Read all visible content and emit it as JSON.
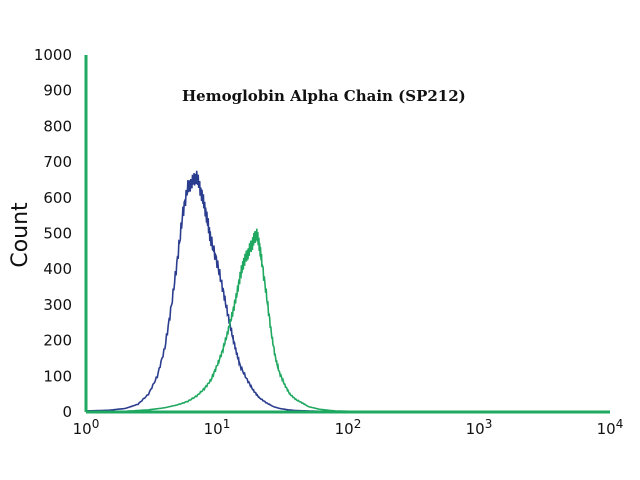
{
  "chart_data": {
    "type": "line",
    "title": "Hemoglobin Alpha Chain (SP212)",
    "xlabel": "",
    "ylabel": "Count",
    "xscale": "log",
    "xlim": [
      1,
      10000
    ],
    "ylim": [
      0,
      1000
    ],
    "grid": false,
    "legend": "none",
    "yticks": [
      "0",
      "100",
      "200",
      "300",
      "400",
      "500",
      "600",
      "700",
      "800",
      "900",
      "1000"
    ],
    "xticks": [
      {
        "base": "10",
        "exp": "0"
      },
      {
        "base": "10",
        "exp": "1"
      },
      {
        "base": "10",
        "exp": "2"
      },
      {
        "base": "10",
        "exp": "3"
      },
      {
        "base": "10",
        "exp": "4"
      }
    ],
    "colors": {
      "series_blue": "#2b3d8f",
      "series_green": "#1fa860",
      "axis": "#1fa860"
    },
    "series": [
      {
        "color": "#2b3d8f",
        "x": [
          1,
          1.5,
          2,
          2.5,
          3,
          3.5,
          4,
          4.5,
          5,
          5.5,
          6,
          6.5,
          7,
          7.5,
          8,
          8.5,
          9,
          10,
          11,
          12,
          13,
          14,
          15,
          17,
          19,
          21,
          24,
          27,
          30,
          35,
          40,
          50,
          60,
          80,
          100,
          200,
          500,
          1000,
          10000
        ],
        "y": [
          3,
          5,
          10,
          22,
          50,
          100,
          180,
          300,
          430,
          560,
          630,
          645,
          660,
          620,
          580,
          530,
          480,
          420,
          350,
          280,
          220,
          170,
          130,
          90,
          60,
          40,
          25,
          15,
          10,
          6,
          4,
          3,
          2,
          1,
          1,
          0,
          0,
          0,
          0
        ]
      },
      {
        "color": "#1fa860",
        "x": [
          1,
          2,
          3,
          4,
          5,
          6,
          7,
          8,
          9,
          10,
          11,
          12,
          13,
          14,
          15,
          16,
          17,
          18,
          19,
          20,
          21,
          22,
          24,
          26,
          28,
          30,
          33,
          36,
          40,
          45,
          50,
          60,
          70,
          80,
          100,
          200,
          500,
          1000,
          10000
        ],
        "y": [
          0,
          2,
          6,
          12,
          20,
          30,
          45,
          65,
          90,
          130,
          170,
          220,
          270,
          320,
          380,
          420,
          440,
          460,
          480,
          500,
          470,
          420,
          320,
          220,
          150,
          110,
          75,
          50,
          35,
          25,
          15,
          8,
          5,
          3,
          2,
          1,
          0,
          0,
          0
        ]
      }
    ]
  }
}
